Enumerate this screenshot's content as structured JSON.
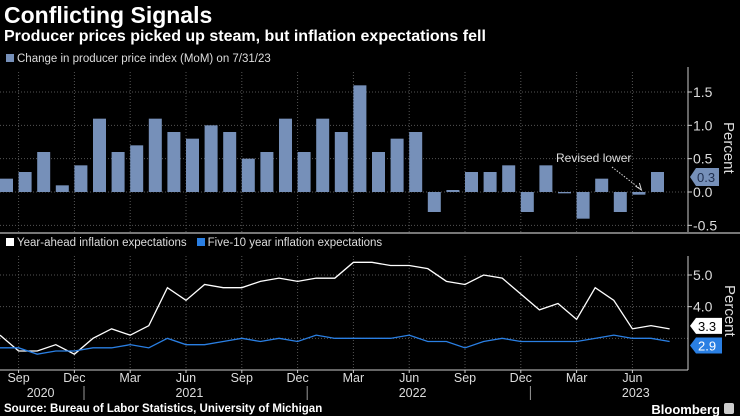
{
  "header": {
    "title": "Conflicting Signals",
    "subtitle": "Producer prices picked up steam, but inflation expectations fell"
  },
  "footer": {
    "source": "Source: Bureau of Labor Statistics, University of Michigan",
    "brand": "Bloomberg"
  },
  "colors": {
    "bar": "#7690b9",
    "white_line": "#ffffff",
    "blue_line": "#2a7fe3",
    "grid": "#555555"
  },
  "chart_data": [
    {
      "type": "bar",
      "title": "Change in producer price index (MoM) on 7/31/23",
      "legend": "Change in producer price index (MoM) on 7/31/23",
      "ylabel": "Percent",
      "ylim": [
        -0.6,
        1.8
      ],
      "yticks": [
        "1.5",
        "1.0",
        "0.5",
        "0.0",
        "-0.5"
      ],
      "ytick_values": [
        1.5,
        1.0,
        0.5,
        0.0,
        -0.5
      ],
      "start": "Aug 2020",
      "categories": [
        "Aug 2020",
        "Sep 2020",
        "Oct 2020",
        "Nov 2020",
        "Dec 2020",
        "Jan 2021",
        "Feb 2021",
        "Mar 2021",
        "Apr 2021",
        "May 2021",
        "Jun 2021",
        "Jul 2021",
        "Aug 2021",
        "Sep 2021",
        "Oct 2021",
        "Nov 2021",
        "Dec 2021",
        "Jan 2022",
        "Feb 2022",
        "Mar 2022",
        "Apr 2022",
        "May 2022",
        "Jun 2022",
        "Jul 2022",
        "Aug 2022",
        "Sep 2022",
        "Oct 2022",
        "Nov 2022",
        "Dec 2022",
        "Jan 2023",
        "Feb 2023",
        "Mar 2023",
        "Apr 2023",
        "May 2023",
        "Jun 2023",
        "Jul 2023"
      ],
      "values": [
        0.2,
        0.3,
        0.6,
        0.1,
        0.4,
        1.1,
        0.6,
        0.7,
        1.1,
        0.9,
        0.8,
        1.0,
        0.9,
        0.5,
        0.6,
        1.1,
        0.6,
        1.1,
        0.9,
        1.6,
        0.6,
        0.8,
        0.9,
        -0.3,
        0.03,
        0.3,
        0.3,
        0.4,
        -0.3,
        0.4,
        -0.02,
        -0.4,
        0.2,
        -0.3,
        -0.04,
        0.3
      ],
      "last_value_label": "0.3",
      "annotation": {
        "text": "Revised lower",
        "target": "Jun 2023"
      }
    },
    {
      "type": "line",
      "ylabel": "Percent",
      "ylim": [
        2.0,
        5.6
      ],
      "yticks": [
        "5.0",
        "4.0"
      ],
      "ytick_values": [
        5.0,
        4.0
      ],
      "x": [
        "Aug 2020",
        "Sep 2020",
        "Oct 2020",
        "Nov 2020",
        "Dec 2020",
        "Jan 2021",
        "Feb 2021",
        "Mar 2021",
        "Apr 2021",
        "May 2021",
        "Jun 2021",
        "Jul 2021",
        "Aug 2021",
        "Sep 2021",
        "Oct 2021",
        "Nov 2021",
        "Dec 2021",
        "Jan 2022",
        "Feb 2022",
        "Mar 2022",
        "Apr 2022",
        "May 2022",
        "Jun 2022",
        "Jul 2022",
        "Aug 2022",
        "Sep 2022",
        "Oct 2022",
        "Nov 2022",
        "Dec 2022",
        "Jan 2023",
        "Feb 2023",
        "Mar 2023",
        "Apr 2023",
        "May 2023",
        "Jun 2023",
        "Jul 2023",
        "Aug 2023"
      ],
      "series": [
        {
          "name": "Year-ahead inflation expectations",
          "last_label": "3.3",
          "values": [
            3.1,
            2.6,
            2.6,
            2.8,
            2.5,
            3.0,
            3.3,
            3.1,
            3.4,
            4.6,
            4.2,
            4.7,
            4.6,
            4.6,
            4.8,
            4.9,
            4.8,
            4.9,
            4.9,
            5.4,
            5.4,
            5.3,
            5.3,
            5.2,
            4.8,
            4.7,
            5.0,
            4.9,
            4.4,
            3.9,
            4.1,
            3.6,
            4.6,
            4.2,
            3.3,
            3.4,
            3.3
          ]
        },
        {
          "name": "Five-10 year inflation expectations",
          "last_label": "2.9",
          "values": [
            2.7,
            2.7,
            2.5,
            2.6,
            2.6,
            2.7,
            2.7,
            2.8,
            2.7,
            3.0,
            2.8,
            2.8,
            2.9,
            3.0,
            2.9,
            3.0,
            2.9,
            3.1,
            3.0,
            3.0,
            3.0,
            3.0,
            3.1,
            2.9,
            2.9,
            2.7,
            2.9,
            3.0,
            2.9,
            2.9,
            2.9,
            2.9,
            3.0,
            3.1,
            3.0,
            3.0,
            2.9
          ]
        }
      ],
      "xtick_labels": [
        {
          "label": "Sep",
          "month": 1
        },
        {
          "label": "Dec",
          "month": 4
        },
        {
          "label": "Mar",
          "month": 7
        },
        {
          "label": "Jun",
          "month": 10
        },
        {
          "label": "Sep",
          "month": 13
        },
        {
          "label": "Dec",
          "month": 16
        },
        {
          "label": "Mar",
          "month": 19
        },
        {
          "label": "Jun",
          "month": 22
        },
        {
          "label": "Sep",
          "month": 25
        },
        {
          "label": "Dec",
          "month": 28
        },
        {
          "label": "Mar",
          "month": 31
        },
        {
          "label": "Jun",
          "month": 34
        }
      ],
      "year_labels": [
        {
          "label": "2020",
          "month": 1
        },
        {
          "label": "2021",
          "month": 9
        },
        {
          "label": "2022",
          "month": 21
        },
        {
          "label": "2023",
          "month": 33
        }
      ]
    }
  ]
}
